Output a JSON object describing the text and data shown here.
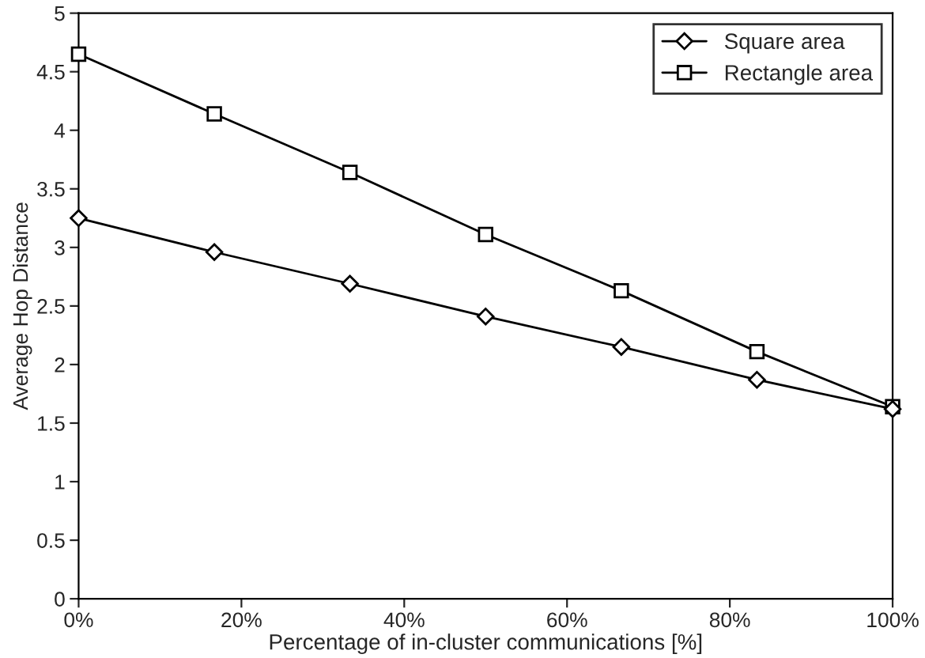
{
  "chart_data": {
    "type": "line",
    "xlabel": "Percentage of in-cluster communications [%]",
    "ylabel": "Average Hop Distance",
    "x": [
      0,
      16.67,
      33.33,
      50,
      66.67,
      83.33,
      100
    ],
    "series": [
      {
        "name": "Square area",
        "color": "#000000",
        "marker": "diamond",
        "values": [
          3.25,
          2.96,
          2.69,
          2.41,
          2.15,
          1.87,
          1.62
        ]
      },
      {
        "name": "Rectangle area",
        "color": "#000000",
        "marker": "square",
        "values": [
          4.65,
          4.14,
          3.64,
          3.11,
          2.63,
          2.11,
          1.64
        ]
      }
    ],
    "xlim": [
      0,
      100
    ],
    "xticks": [
      {
        "value": 0,
        "label": "0%"
      },
      {
        "value": 20,
        "label": "20%"
      },
      {
        "value": 40,
        "label": "40%"
      },
      {
        "value": 60,
        "label": "60%"
      },
      {
        "value": 80,
        "label": "80%"
      },
      {
        "value": 100,
        "label": "100%"
      }
    ],
    "ylim": [
      0,
      5
    ],
    "yticks": [
      0,
      0.5,
      1,
      1.5,
      2,
      2.5,
      3,
      3.5,
      4,
      4.5,
      5
    ],
    "grid": false,
    "legend": "top right",
    "line_style": "solid"
  }
}
